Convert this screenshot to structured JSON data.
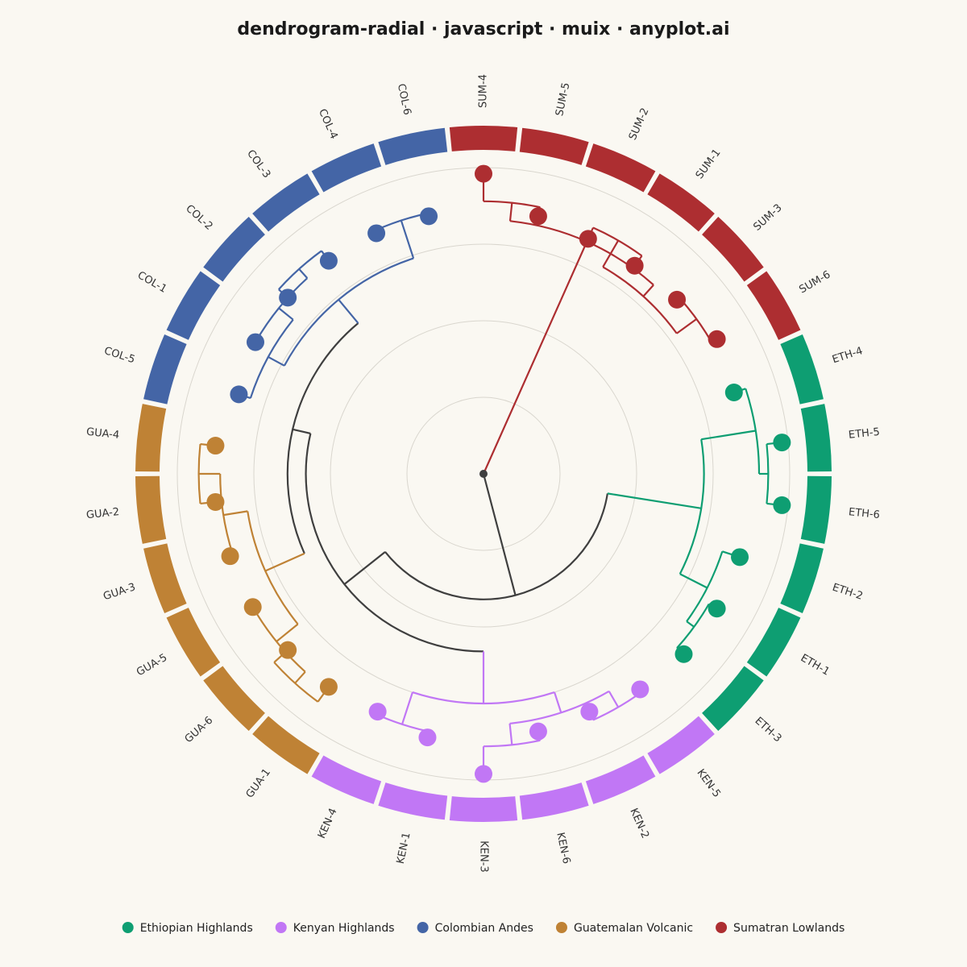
{
  "chart_data": {
    "type": "dendrogram-radial",
    "title": "dendrogram-radial · javascript · muix · anyplot.ai",
    "groups": [
      {
        "key": "ETH",
        "name": "Ethiopian Highlands",
        "color": "#0E9E72"
      },
      {
        "key": "KEN",
        "name": "Kenyan Highlands",
        "color": "#C177F5"
      },
      {
        "key": "COL",
        "name": "Colombian Andes",
        "color": "#4465A6"
      },
      {
        "key": "GUA",
        "name": "Guatemalan Volcanic",
        "color": "#BF8235"
      },
      {
        "key": "SUM",
        "name": "Sumatran Lowlands",
        "color": "#AD2E31"
      }
    ],
    "root_color": "#3F3F3F",
    "gridline_color": "#D9D6CE",
    "leaves": [
      {
        "label": "SUM-4",
        "group": "SUM",
        "depth": 0.02
      },
      {
        "label": "SUM-5",
        "group": "SUM",
        "depth": 0.14
      },
      {
        "label": "SUM-2",
        "group": "SUM",
        "depth": 0.16
      },
      {
        "label": "SUM-1",
        "group": "SUM",
        "depth": 0.16
      },
      {
        "label": "SUM-3",
        "group": "SUM",
        "depth": 0.15
      },
      {
        "label": "SUM-6",
        "group": "SUM",
        "depth": 0.12
      },
      {
        "label": "ETH-4",
        "group": "ETH",
        "depth": 0.14
      },
      {
        "label": "ETH-5",
        "group": "ETH",
        "depth": 0.02
      },
      {
        "label": "ETH-6",
        "group": "ETH",
        "depth": 0.02
      },
      {
        "label": "ETH-2",
        "group": "ETH",
        "depth": 0.12
      },
      {
        "label": "ETH-1",
        "group": "ETH",
        "depth": 0.12
      },
      {
        "label": "ETH-3",
        "group": "ETH",
        "depth": 0.12
      },
      {
        "label": "KEN-5",
        "group": "KEN",
        "depth": 0.13
      },
      {
        "label": "KEN-2",
        "group": "KEN",
        "depth": 0.15
      },
      {
        "label": "KEN-6",
        "group": "KEN",
        "depth": 0.14
      },
      {
        "label": "KEN-3",
        "group": "KEN",
        "depth": 0.02
      },
      {
        "label": "KEN-1",
        "group": "KEN",
        "depth": 0.12
      },
      {
        "label": "KEN-4",
        "group": "KEN",
        "depth": 0.15
      },
      {
        "label": "GUA-1",
        "group": "GUA",
        "depth": 0.14
      },
      {
        "label": "GUA-6",
        "group": "GUA",
        "depth": 0.14
      },
      {
        "label": "GUA-5",
        "group": "GUA",
        "depth": 0.13
      },
      {
        "label": "GUA-3",
        "group": "GUA",
        "depth": 0.13
      },
      {
        "label": "GUA-2",
        "group": "GUA",
        "depth": 0.12
      },
      {
        "label": "GUA-4",
        "group": "GUA",
        "depth": 0.12
      },
      {
        "label": "COL-5",
        "group": "COL",
        "depth": 0.16
      },
      {
        "label": "COL-1",
        "group": "COL",
        "depth": 0.14
      },
      {
        "label": "COL-2",
        "group": "COL",
        "depth": 0.14
      },
      {
        "label": "COL-3",
        "group": "COL",
        "depth": 0.14
      },
      {
        "label": "COL-4",
        "group": "COL",
        "depth": 0.14
      },
      {
        "label": "COL-6",
        "group": "COL",
        "depth": 0.14
      }
    ],
    "tree": {
      "h": 0,
      "color": "root",
      "children": [
        {
          "h": 0.62,
          "color": "SUM",
          "children": [
            {
              "h": 0.83,
              "color": "SUM",
              "children": [
                {
                  "h": 0.89,
                  "color": "SUM",
                  "children": [
                    "SUM-4",
                    "SUM-5"
                  ]
                },
                {
                  "h": 0.78,
                  "color": "SUM",
                  "children": [
                    {
                      "h": 0.88,
                      "color": "SUM",
                      "children": [
                        "SUM-2",
                        "SUM-1"
                      ]
                    },
                    {
                      "h": 0.86,
                      "color": "SUM",
                      "children": [
                        "SUM-3",
                        "SUM-6"
                      ]
                    }
                  ]
                }
              ]
            }
          ]
        },
        {
          "h": 0.41,
          "color": "root",
          "children": [
            {
              "h": 0.72,
              "color": "ETH",
              "children": [
                {
                  "h": 0.9,
                  "color": "ETH",
                  "children": [
                    "ETH-4",
                    {
                      "h": 0.93,
                      "color": "ETH",
                      "children": [
                        "ETH-5",
                        "ETH-6"
                      ]
                    }
                  ]
                },
                {
                  "h": 0.82,
                  "color": "ETH",
                  "children": [
                    "ETH-2",
                    {
                      "h": 0.85,
                      "color": "ETH",
                      "children": [
                        "ETH-1",
                        "ETH-3"
                      ]
                    }
                  ]
                }
              ]
            },
            {
              "h": 0.58,
              "color": "root",
              "children": [
                {
                  "h": 0.75,
                  "color": "KEN",
                  "children": [
                    {
                      "h": 0.82,
                      "color": "KEN",
                      "children": [
                        {
                          "h": 0.88,
                          "color": "KEN",
                          "children": [
                            "KEN-5",
                            "KEN-2"
                          ]
                        },
                        {
                          "h": 0.89,
                          "color": "KEN",
                          "children": [
                            "KEN-6",
                            "KEN-3"
                          ]
                        }
                      ]
                    },
                    {
                      "h": 0.86,
                      "color": "KEN",
                      "children": [
                        "KEN-1",
                        "KEN-4"
                      ]
                    }
                  ]
                },
                {
                  "h": 0.64,
                  "color": "root",
                  "children": [
                    {
                      "h": 0.78,
                      "color": "GUA",
                      "children": [
                        {
                          "h": 0.87,
                          "color": "GUA",
                          "children": [
                            {
                              "h": 0.92,
                              "color": "GUA",
                              "children": [
                                "GUA-1",
                                "GUA-6"
                              ]
                            },
                            "GUA-5"
                          ]
                        },
                        {
                          "h": 0.86,
                          "color": "GUA",
                          "children": [
                            "GUA-3",
                            {
                              "h": 0.93,
                              "color": "GUA",
                              "children": [
                                "GUA-2",
                                "GUA-4"
                              ]
                            }
                          ]
                        }
                      ]
                    },
                    {
                      "h": 0.74,
                      "color": "COL",
                      "children": [
                        {
                          "h": 0.8,
                          "color": "COL",
                          "children": [
                            "COL-5",
                            {
                              "h": 0.86,
                              "color": "COL",
                              "children": [
                                "COL-1",
                                {
                                  "h": 0.9,
                                  "color": "COL",
                                  "children": [
                                    "COL-2",
                                    "COL-3"
                                  ]
                                }
                              ]
                            }
                          ]
                        },
                        {
                          "h": 0.87,
                          "color": "COL",
                          "children": [
                            "COL-4",
                            "COL-6"
                          ]
                        }
                      ]
                    }
                  ]
                }
              ]
            }
          ]
        }
      ]
    },
    "legend": {
      "placement": "bottom-center"
    },
    "grid": true
  }
}
